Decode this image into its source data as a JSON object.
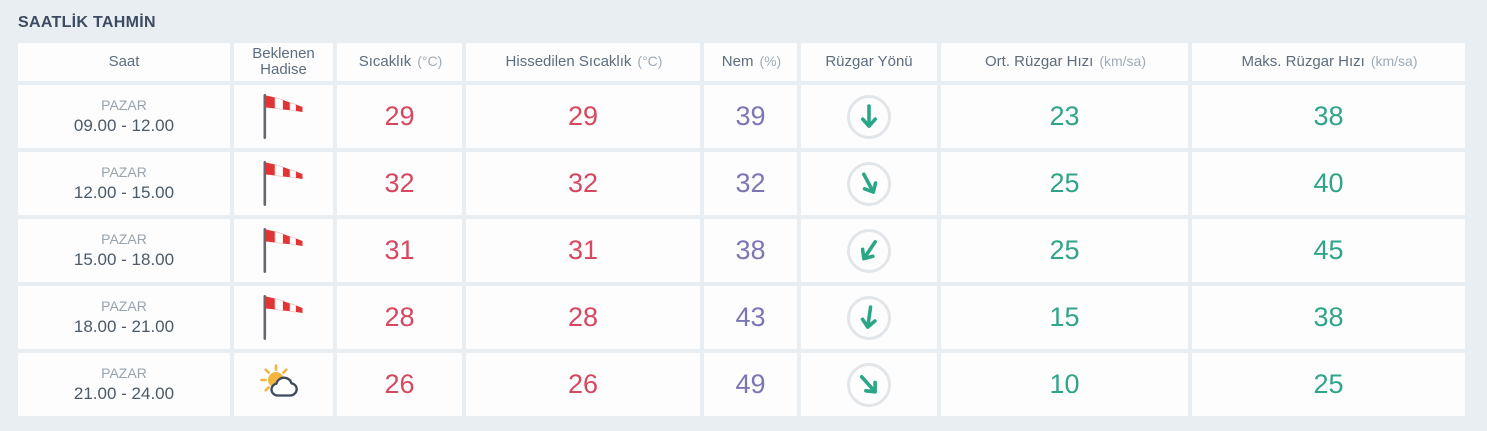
{
  "page": {
    "title": "SAATLİK TAHMİN",
    "background": "#e8eef2"
  },
  "colors": {
    "title_text": "#3c4b62",
    "header_text": "#5d6d7d",
    "unit_text": "#9fabb6",
    "day_text": "#99a3ad",
    "time_text": "#4b5a68",
    "temperature_value": "#d5485f",
    "humidity_value": "#7d76b5",
    "wind_value": "#30a489",
    "wind_arrow": "#2ba687",
    "windsock_red": "#e23434",
    "sun_yellow": "#f0b640",
    "cloud_outline": "#3d4a5d"
  },
  "table": {
    "columns": [
      {
        "label": "Saat",
        "unit": ""
      },
      {
        "label": "Beklenen Hadise",
        "unit": ""
      },
      {
        "label": "Sıcaklık",
        "unit": "(°C)"
      },
      {
        "label": "Hissedilen Sıcaklık",
        "unit": "(°C)"
      },
      {
        "label": "Nem",
        "unit": "(%)"
      },
      {
        "label": "Rüzgar Yönü",
        "unit": ""
      },
      {
        "label": "Ort. Rüzgar Hızı",
        "unit": "(km/sa)"
      },
      {
        "label": "Maks. Rüzgar Hızı",
        "unit": "(km/sa)"
      }
    ],
    "rows": [
      {
        "day": "PAZAR",
        "time": "09.00 - 12.00",
        "icon": "windsock",
        "temp": "29",
        "feels": "29",
        "humidity": "39",
        "wind_dir_deg": 0,
        "avg_wind": "23",
        "max_wind": "38"
      },
      {
        "day": "PAZAR",
        "time": "12.00 - 15.00",
        "icon": "windsock",
        "temp": "32",
        "feels": "32",
        "humidity": "32",
        "wind_dir_deg": -28,
        "avg_wind": "25",
        "max_wind": "40"
      },
      {
        "day": "PAZAR",
        "time": "15.00 - 18.00",
        "icon": "windsock",
        "temp": "31",
        "feels": "31",
        "humidity": "38",
        "wind_dir_deg": 34,
        "avg_wind": "25",
        "max_wind": "45"
      },
      {
        "day": "PAZAR",
        "time": "18.00 - 21.00",
        "icon": "windsock",
        "temp": "28",
        "feels": "28",
        "humidity": "43",
        "wind_dir_deg": 8,
        "avg_wind": "15",
        "max_wind": "38"
      },
      {
        "day": "PAZAR",
        "time": "21.00 - 24.00",
        "icon": "sun-cloud",
        "temp": "26",
        "feels": "26",
        "humidity": "49",
        "wind_dir_deg": -42,
        "avg_wind": "10",
        "max_wind": "25"
      }
    ]
  }
}
